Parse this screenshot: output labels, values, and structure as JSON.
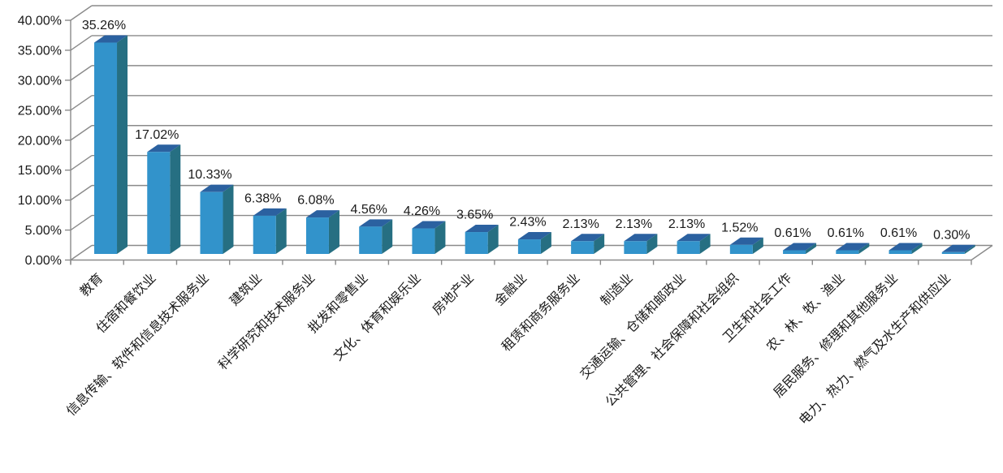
{
  "chart_data": {
    "type": "bar",
    "variant": "3d-column",
    "title": "",
    "xlabel": "",
    "ylabel": "",
    "legend": "none",
    "grid": true,
    "categories": [
      "教育",
      "住宿和餐饮业",
      "信息传输、软件和信息技术服务业",
      "建筑业",
      "科学研究和技术服务业",
      "批发和零售业",
      "文化、体育和娱乐业",
      "房地产业",
      "金融业",
      "租赁和商务服务业",
      "制造业",
      "交通运输、仓储和邮政业",
      "公共管理、社会保障和社会组织",
      "卫生和社会工作",
      "农、林、牧、渔业",
      "居民服务、修理和其他服务业",
      "电力、热力、燃气及水生产和供应业"
    ],
    "values": [
      35.26,
      17.02,
      10.33,
      6.38,
      6.08,
      4.56,
      4.26,
      3.65,
      2.43,
      2.13,
      2.13,
      2.13,
      1.52,
      0.61,
      0.61,
      0.61,
      0.3
    ],
    "data_labels": [
      "35.26%",
      "17.02%",
      "10.33%",
      "6.38%",
      "6.08%",
      "4.56%",
      "4.26%",
      "3.65%",
      "2.43%",
      "2.13%",
      "2.13%",
      "2.13%",
      "1.52%",
      "0.61%",
      "0.61%",
      "0.61%",
      "0.30%"
    ],
    "y_axis": {
      "min": 0,
      "max": 40,
      "step": 5,
      "ticks": [
        "40.00%",
        "35.00%",
        "30.00%",
        "25.00%",
        "20.00%",
        "15.00%",
        "10.00%",
        "5.00%",
        "0.00%"
      ]
    },
    "colors": {
      "bar_front": "#3293CB",
      "bar_top": "#2B61A0",
      "bar_side": "#266F82",
      "gridline": "#8A8A8A",
      "axis": "#8A8A8A",
      "label": "#1A1A1A",
      "background": "#FFFFFF"
    }
  }
}
